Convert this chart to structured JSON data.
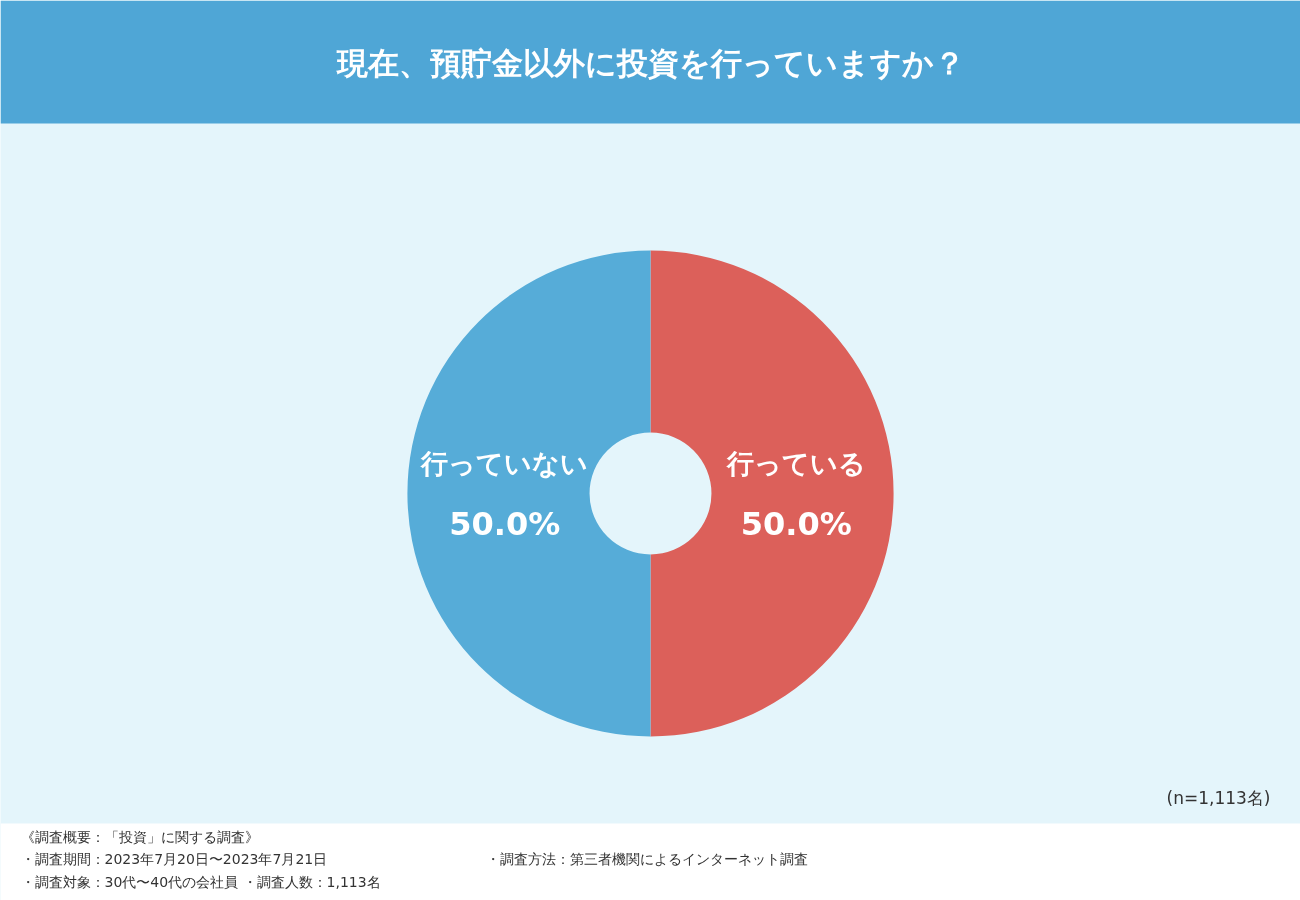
{
  "chart_data": {
    "type": "donut",
    "title": "現在、預貯金以外に投資を行っていますか？",
    "categories": [
      "行っている",
      "行っていない"
    ],
    "values": [
      50.0,
      50.0
    ],
    "colors": [
      "#dc605a",
      "#56acd8"
    ],
    "value_labels": [
      "50.0%",
      "50.0%"
    ],
    "annotations": [
      "(n=1,113名)",
      "《調査概要：「投資」に関する調査》",
      "・調査期間：2023年7月20日〜2023年7月21日",
      "・調査方法：第三者機関によるインターネット調査",
      "・調査対象：30代〜40代の会社員 ・調査人数：1,113名"
    ]
  }
}
